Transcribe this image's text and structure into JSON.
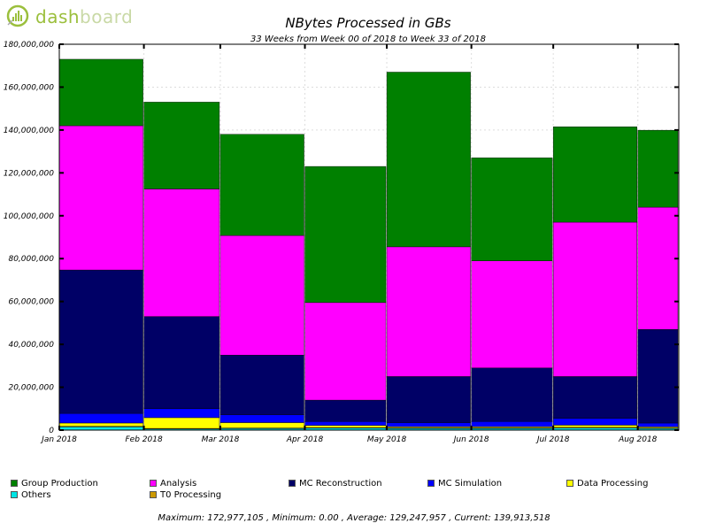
{
  "logo": {
    "text_prefix": "dash",
    "text_suffix": "board"
  },
  "chart_data": {
    "type": "bar",
    "stacked": true,
    "title": "NBytes Processed in GBs",
    "subtitle": "33 Weeks from Week 00 of 2018 to Week 33 of 2018",
    "xlabel": "",
    "ylabel": "",
    "ylim": [
      0,
      180000000
    ],
    "yticks": [
      0,
      20000000,
      40000000,
      60000000,
      80000000,
      100000000,
      120000000,
      140000000,
      160000000,
      180000000
    ],
    "ytick_labels": [
      "0",
      "20,000,000",
      "40,000,000",
      "60,000,000",
      "80,000,000",
      "100,000,000",
      "120,000,000",
      "140,000,000",
      "160,000,000",
      "180,000,000"
    ],
    "xtick_labels": [
      "Jan 2018",
      "Feb 2018",
      "Mar 2018",
      "Apr 2018",
      "May 2018",
      "Jun 2018",
      "Jul 2018",
      "Aug 2018"
    ],
    "x_range_days": [
      0,
      227
    ],
    "bars": [
      {
        "start_day": 0,
        "end_day": 31
      },
      {
        "start_day": 31,
        "end_day": 59
      },
      {
        "start_day": 59,
        "end_day": 90
      },
      {
        "start_day": 90,
        "end_day": 120
      },
      {
        "start_day": 120,
        "end_day": 151
      },
      {
        "start_day": 151,
        "end_day": 181
      },
      {
        "start_day": 181,
        "end_day": 212
      },
      {
        "start_day": 212,
        "end_day": 236
      }
    ],
    "series": [
      {
        "name": "Others",
        "color": "#00e5e5",
        "values": [
          1500000,
          500000,
          700000,
          900000,
          800000,
          800000,
          1000000,
          700000
        ]
      },
      {
        "name": "T0 Processing",
        "color": "#cc9900",
        "values": [
          300000,
          300000,
          300000,
          300000,
          300000,
          300000,
          300000,
          300000
        ]
      },
      {
        "name": "Data Processing",
        "color": "#ffff00",
        "values": [
          1500000,
          5000000,
          2500000,
          1000000,
          500000,
          500000,
          1000000,
          500000
        ]
      },
      {
        "name": "MC Simulation",
        "color": "#0000ff",
        "values": [
          4500000,
          4200000,
          3700000,
          1800000,
          1900000,
          2400000,
          3200000,
          1800000
        ]
      },
      {
        "name": "MC Reconstruction",
        "color": "#000066",
        "values": [
          66900000,
          43000000,
          27800000,
          10000000,
          21500000,
          25000000,
          19500000,
          43700000
        ]
      },
      {
        "name": "Analysis",
        "color": "#ff00ff",
        "values": [
          67300000,
          59500000,
          55800000,
          45500000,
          60500000,
          50000000,
          72000000,
          57000000
        ]
      },
      {
        "name": "Group Production",
        "color": "#008000",
        "values": [
          31000000,
          40500000,
          47200000,
          63500000,
          81500000,
          48000000,
          44500000,
          35900000
        ]
      }
    ],
    "legend_order": [
      "Group Production",
      "Analysis",
      "MC Reconstruction",
      "MC Simulation",
      "Data Processing",
      "Others",
      "T0 Processing"
    ],
    "grid": true,
    "legend_position": "bottom",
    "summary": "Maximum: 172,977,105 , Minimum: 0.00 , Average: 129,247,957 , Current: 139,913,518"
  }
}
